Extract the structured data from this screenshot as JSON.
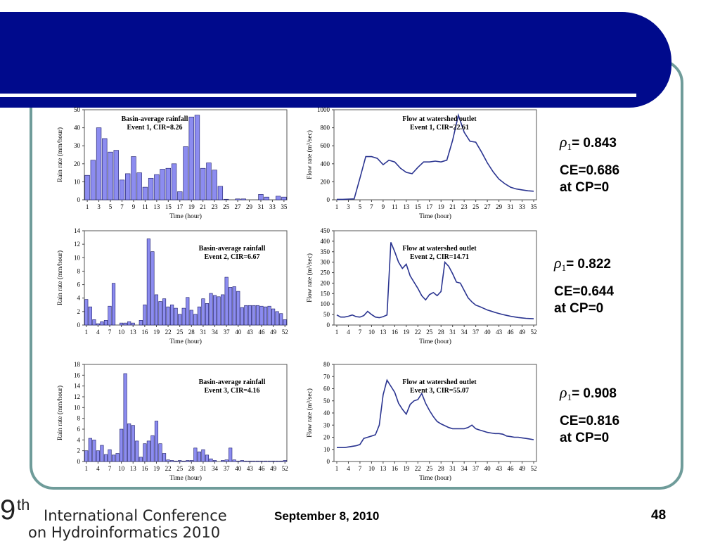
{
  "slide": {
    "footer_date": "September 8, 2010",
    "page_number": "48",
    "logo": {
      "nine": "9",
      "th": "th",
      "line1": "International Conference",
      "line2": "on Hydroinformatics 2010"
    }
  },
  "colors": {
    "banner": "#000a8c",
    "frame": "#6f9c9a",
    "bar": "#8c8cf0",
    "bar_edge": "#1a1a66",
    "line": "#2a3490"
  },
  "stats": [
    {
      "rho_symbol": "ρ",
      "rho_sub": "1",
      "rho_text": "= 0.843",
      "ce": "CE=0.686",
      "cp": "at CP=0"
    },
    {
      "rho_symbol": "ρ",
      "rho_sub": "1",
      "rho_text": "= 0.822",
      "ce": "CE=0.644",
      "cp": "at CP=0"
    },
    {
      "rho_symbol": "ρ",
      "rho_sub": "1",
      "rho_text": "= 0.908",
      "ce": "CE=0.816",
      "cp": "at CP=0"
    }
  ],
  "chart_data": [
    {
      "type": "bar",
      "title_line1": "Basin-average rainfall",
      "title_line2": "Event 1, CIR=8.26",
      "xlabel": "Time (hour)",
      "ylabel": "Rain rate (mm/hour)",
      "ylim": [
        0,
        50
      ],
      "yticks": [
        0,
        10,
        20,
        30,
        40,
        50
      ],
      "x_start": 1,
      "x_end": 35,
      "xticks": [
        1,
        3,
        5,
        7,
        9,
        11,
        13,
        15,
        17,
        19,
        21,
        23,
        25,
        27,
        29,
        31,
        33,
        35
      ],
      "values": [
        13.6,
        22,
        40,
        34,
        26.5,
        27.5,
        11,
        14.5,
        24,
        15,
        7,
        12,
        14,
        17,
        17.5,
        20,
        4.5,
        29.5,
        46,
        47,
        17.5,
        20.5,
        16.5,
        7.5,
        0.3,
        0,
        0.5,
        0.5,
        0,
        0,
        3,
        1.5,
        0,
        2,
        1.5
      ]
    },
    {
      "type": "line",
      "title_line1": "Flow at watershed outlet",
      "title_line2": "Event 1, CIR=22.61",
      "xlabel": "Time (hour)",
      "ylabel": "Flow rate (m³/sec)",
      "ylim": [
        0,
        1000
      ],
      "yticks": [
        0,
        200,
        400,
        600,
        800,
        1000
      ],
      "x_start": 1,
      "x_end": 35,
      "xticks": [
        1,
        3,
        5,
        7,
        9,
        11,
        13,
        15,
        17,
        19,
        21,
        23,
        25,
        27,
        29,
        31,
        33,
        35
      ],
      "values": [
        5,
        5,
        8,
        10,
        240,
        480,
        480,
        460,
        390,
        440,
        420,
        350,
        305,
        290,
        360,
        420,
        420,
        430,
        420,
        440,
        660,
        940,
        750,
        650,
        640,
        530,
        410,
        310,
        230,
        180,
        140,
        120,
        110,
        100,
        95
      ]
    },
    {
      "type": "bar",
      "title_line1": "Basin-average rainfall",
      "title_line2": "Event 2, CIR=6.67",
      "xlabel": "Time (hour)",
      "ylabel": "Rain rate (mm/hour)",
      "ylim": [
        0,
        14
      ],
      "yticks": [
        0,
        2,
        4,
        6,
        8,
        10,
        12,
        14
      ],
      "x_start": 1,
      "x_end": 52,
      "xticks": [
        1,
        4,
        7,
        10,
        13,
        16,
        19,
        22,
        25,
        28,
        31,
        34,
        37,
        40,
        43,
        46,
        49,
        52
      ],
      "values": [
        3.8,
        2.7,
        0.8,
        0.2,
        0.5,
        0.7,
        2.8,
        6.2,
        0,
        0.3,
        0.3,
        0.5,
        0.3,
        0,
        0.7,
        3,
        12.8,
        10.9,
        4.5,
        3.5,
        3.9,
        2.7,
        3,
        2.5,
        1.6,
        2.5,
        4.1,
        2.2,
        1.6,
        2.7,
        3.9,
        3.2,
        4.7,
        4.4,
        4.2,
        4.5,
        7.1,
        5.6,
        5.7,
        5,
        2.6,
        2.9,
        2.9,
        2.9,
        2.9,
        2.8,
        2.7,
        2.8,
        2.4,
        2,
        1.7,
        0.8
      ]
    },
    {
      "type": "line",
      "title_line1": "Flow at watershed outlet",
      "title_line2": "Event 2, CIR=14.71",
      "xlabel": "Time (hour)",
      "ylabel": "Flow rate (m³/sec)",
      "ylim": [
        0,
        450
      ],
      "yticks": [
        0,
        50,
        100,
        150,
        200,
        250,
        300,
        350,
        400,
        450
      ],
      "x_start": 1,
      "x_end": 52,
      "xticks": [
        1,
        4,
        7,
        10,
        13,
        16,
        19,
        22,
        25,
        28,
        31,
        34,
        37,
        40,
        43,
        46,
        49,
        52
      ],
      "values": [
        48,
        38,
        38,
        42,
        48,
        40,
        38,
        45,
        65,
        50,
        38,
        35,
        40,
        48,
        395,
        350,
        300,
        270,
        290,
        235,
        205,
        175,
        140,
        120,
        145,
        155,
        140,
        160,
        300,
        280,
        245,
        205,
        200,
        165,
        130,
        110,
        95,
        88,
        80,
        72,
        66,
        60,
        55,
        50,
        46,
        42,
        39,
        36,
        34,
        32,
        31,
        30
      ]
    },
    {
      "type": "bar",
      "title_line1": "Basin-average rainfall",
      "title_line2": "Event 3, CIR=4.16",
      "xlabel": "Time (hour)",
      "ylabel": "Rain rate (mm/hour)",
      "ylim": [
        0,
        18
      ],
      "yticks": [
        0,
        2,
        4,
        6,
        8,
        10,
        12,
        14,
        16,
        18
      ],
      "x_start": 1,
      "x_end": 52,
      "xticks": [
        1,
        4,
        7,
        10,
        13,
        16,
        19,
        22,
        25,
        28,
        31,
        34,
        37,
        40,
        43,
        46,
        49,
        52
      ],
      "values": [
        2,
        4.3,
        4,
        2,
        3,
        1.3,
        2.2,
        1.2,
        1.5,
        6,
        16.3,
        7,
        6.7,
        3.8,
        0.8,
        3.3,
        3.8,
        4.8,
        7.5,
        3.3,
        1.5,
        0.3,
        0.2,
        0.1,
        0.2,
        0.1,
        0.2,
        0.2,
        2.5,
        1.8,
        2.2,
        1.2,
        0.5,
        0.2,
        0,
        0.2,
        0.3,
        2.5,
        0.3,
        0.1,
        0.2,
        0.1,
        0.1,
        0.1,
        0.1,
        0.1,
        0.1,
        0.1,
        0.1,
        0.1,
        0.1,
        0.2
      ]
    },
    {
      "type": "line",
      "title_line1": "Flow at watershed outlet",
      "title_line2": "Event 3, CIR=55.07",
      "xlabel": "Time (hour)",
      "ylabel": "Flow rate (m³/sec)",
      "ylim": [
        0,
        80
      ],
      "yticks": [
        0,
        10,
        20,
        30,
        40,
        50,
        60,
        70,
        80
      ],
      "x_start": 1,
      "x_end": 52,
      "xticks": [
        1,
        4,
        7,
        10,
        13,
        16,
        19,
        22,
        25,
        28,
        31,
        34,
        37,
        40,
        43,
        46,
        49,
        52
      ],
      "values": [
        11.5,
        11.5,
        11.5,
        12,
        12.5,
        13,
        14,
        19,
        20,
        21,
        22,
        30,
        55,
        67,
        62,
        57,
        48,
        43,
        39,
        47,
        50,
        51,
        56,
        48,
        42,
        37,
        33,
        31,
        29.5,
        28,
        27,
        27,
        27,
        27,
        28,
        30,
        27,
        26,
        25,
        24,
        23.5,
        23,
        23,
        22.5,
        21,
        20.5,
        20,
        20,
        19.5,
        19,
        18.5,
        18
      ]
    }
  ]
}
